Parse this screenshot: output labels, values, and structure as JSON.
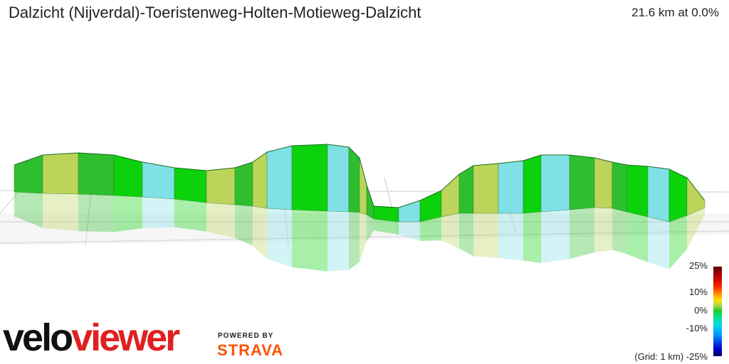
{
  "header": {
    "title": "Dalzicht (Nijverdal)-Toeristenweg-Holten-Motieweg-Dalzicht",
    "distance_label": "21.6 km at 0.0%"
  },
  "branding": {
    "velo": "velo",
    "viewer": "viewer",
    "powered_by": "POWERED BY",
    "strava": "STRAVA",
    "velo_color": "#111111",
    "viewer_color": "#e02020",
    "strava_color": "#fc5200"
  },
  "legend": {
    "labels": [
      "25%",
      "10%",
      "0%",
      "-10%",
      "(Grid: 1 km) -25%"
    ]
  },
  "profile": {
    "palette": [
      "#2fbe2f",
      "#12b412",
      "#3ed43e",
      "#0bd20b",
      "#57c957",
      "#e8e07a",
      "#bcd45a",
      "#5fd0b0",
      "#3dd6e6",
      "#7fe0e6",
      "#1e8a1e",
      "#c9c956"
    ]
  }
}
